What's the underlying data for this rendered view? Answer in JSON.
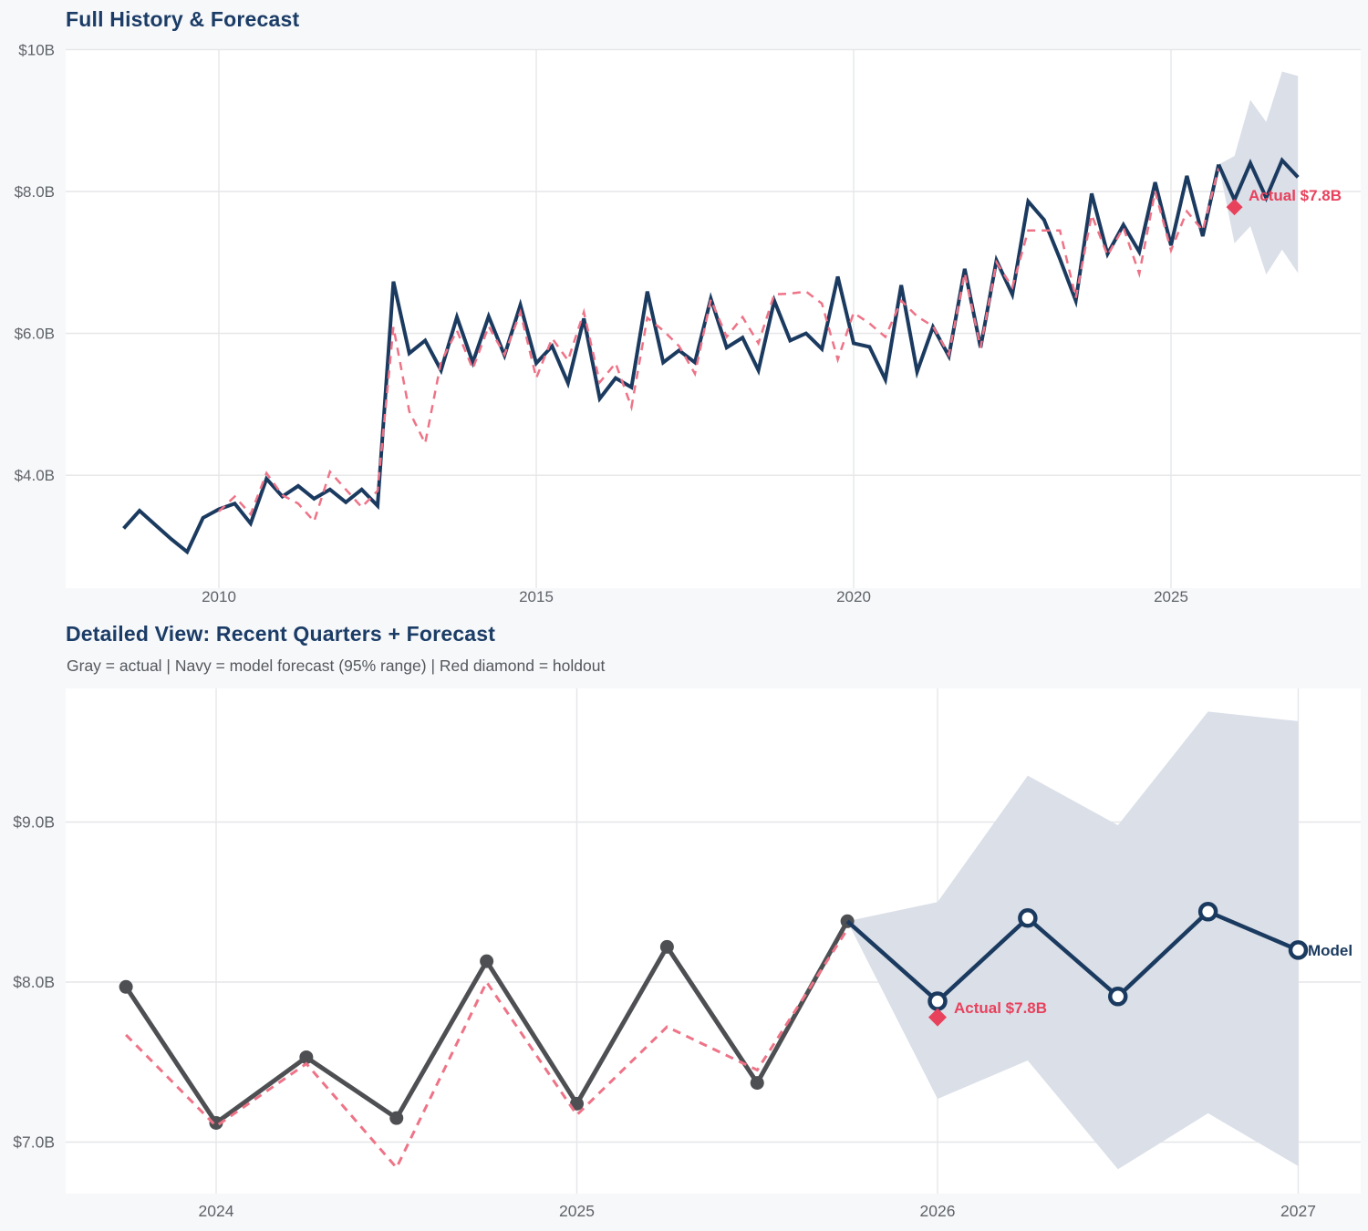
{
  "colors": {
    "navy": "#1b3a5f",
    "pink": "#ee7387",
    "red": "#e8415c",
    "band": "#dadfe8",
    "gray": "#4d4f52",
    "grid": "#e5e6e8",
    "axis_text": "#5f6368",
    "title": "#1b3c66",
    "subtitle": "#54585d",
    "background": "#f7f8fa",
    "plot_background": "#ffffff"
  },
  "chart_data": [
    {
      "type": "line",
      "title": "Full History & Forecast",
      "x_unit": "year (quarterly points)",
      "y_unit": "revenue, billions USD",
      "xlim": [
        2008.0,
        2028.0
      ],
      "ylim": [
        2.4,
        10.0
      ],
      "grid": "on",
      "y_ticks": [
        {
          "label": "$10B",
          "value": 10
        },
        {
          "label": "$8.0B",
          "value": 8
        },
        {
          "label": "$6.0B",
          "value": 6
        },
        {
          "label": "$4.0B",
          "value": 4
        }
      ],
      "x_ticks": [
        {
          "label": "2010",
          "value": 2010
        },
        {
          "label": "2015",
          "value": 2015
        },
        {
          "label": "2020",
          "value": 2020
        },
        {
          "label": "2025",
          "value": 2025
        }
      ],
      "series": [
        {
          "name": "actual",
          "color": "navy",
          "style": "solid",
          "width": 4,
          "x_start": 2008.5,
          "x_step": 0.25,
          "values": [
            3.25,
            3.5,
            3.3,
            3.1,
            2.92,
            3.4,
            3.52,
            3.6,
            3.32,
            3.95,
            3.7,
            3.85,
            3.67,
            3.8,
            3.62,
            3.8,
            3.57,
            6.73,
            5.72,
            5.9,
            5.48,
            6.23,
            5.59,
            6.24,
            5.69,
            6.4,
            5.58,
            5.82,
            5.3,
            6.21,
            5.08,
            5.37,
            5.24,
            6.59,
            5.59,
            5.76,
            5.59,
            6.49,
            5.8,
            5.94,
            5.48,
            6.46,
            5.9,
            6.0,
            5.78,
            6.8,
            5.86,
            5.81,
            5.35,
            6.68,
            5.46,
            6.09,
            5.68,
            6.91,
            5.8,
            7.03,
            6.55,
            7.86,
            7.6,
            7.05,
            6.46,
            7.97,
            7.12,
            7.53,
            7.15,
            8.13,
            7.24,
            8.22,
            7.37,
            8.38
          ]
        },
        {
          "name": "model_in_sample_fit",
          "color": "pink",
          "style": "dashed",
          "width": 2.5,
          "x_start": 2010.0,
          "x_step": 0.25,
          "values": [
            3.49,
            3.7,
            3.45,
            4.03,
            3.72,
            3.6,
            3.35,
            4.05,
            3.8,
            3.55,
            3.78,
            6.09,
            4.9,
            4.45,
            5.6,
            6.04,
            5.5,
            6.1,
            5.7,
            6.3,
            5.37,
            5.93,
            5.62,
            6.3,
            5.31,
            5.58,
            4.96,
            6.22,
            6.04,
            5.82,
            5.43,
            6.48,
            5.95,
            6.23,
            5.86,
            6.55,
            6.56,
            6.59,
            6.42,
            5.63,
            6.29,
            6.14,
            5.95,
            6.46,
            6.24,
            6.1,
            5.7,
            6.85,
            5.8,
            7.0,
            6.65,
            7.45,
            7.45,
            7.45,
            6.5,
            7.67,
            7.1,
            7.49,
            6.84,
            8.0,
            7.17,
            7.72,
            7.45,
            8.33
          ]
        },
        {
          "name": "model_forecast",
          "color": "navy",
          "style": "solid",
          "width": 4,
          "x_start": 2025.75,
          "x_step": 0.25,
          "values": [
            8.38,
            7.88,
            8.4,
            7.91,
            8.44,
            8.2
          ]
        }
      ],
      "band": {
        "name": "forecast_95_range",
        "color": "band",
        "x_start": 2025.75,
        "x_step": 0.25,
        "upper": [
          8.38,
          8.5,
          9.29,
          8.98,
          9.69,
          9.63
        ],
        "lower": [
          8.38,
          7.27,
          7.51,
          6.83,
          7.18,
          6.85
        ]
      },
      "holdout": {
        "x": 2026.0,
        "value": 7.78,
        "label": "Actual $7.8B",
        "marker": "diamond",
        "size": 9
      }
    },
    {
      "type": "line",
      "title": "Detailed View: Recent Quarters + Forecast",
      "subtitle": "Gray = actual  |  Navy = model forecast (95% range)  |  Red diamond = holdout",
      "x_unit": "year (quarterly points)",
      "y_unit": "revenue, billions USD",
      "xlim": [
        2023.6,
        2027.2
      ],
      "ylim": [
        6.7,
        9.8
      ],
      "grid": "on",
      "y_ticks": [
        {
          "label": "$9.0B",
          "value": 9
        },
        {
          "label": "$8.0B",
          "value": 8
        },
        {
          "label": "$7.0B",
          "value": 7
        }
      ],
      "x_ticks": [
        {
          "label": "2024",
          "value": 2024
        },
        {
          "label": "2025",
          "value": 2025
        },
        {
          "label": "2026",
          "value": 2026
        },
        {
          "label": "2027",
          "value": 2027
        }
      ],
      "series": [
        {
          "name": "actual",
          "color": "gray",
          "style": "solid",
          "width": 5,
          "marker": "dot",
          "marker_size": 7.5,
          "x_start": 2023.75,
          "x_step": 0.25,
          "values": [
            7.97,
            7.12,
            7.53,
            7.15,
            8.13,
            7.24,
            8.22,
            7.37,
            8.38
          ]
        },
        {
          "name": "model_in_sample_fit",
          "color": "pink",
          "style": "dashed",
          "width": 3,
          "x_start": 2023.75,
          "x_step": 0.25,
          "values": [
            7.67,
            7.1,
            7.49,
            6.84,
            8.0,
            7.17,
            7.72,
            7.45,
            8.33
          ]
        },
        {
          "name": "model_forecast",
          "color": "navy",
          "style": "solid",
          "width": 4.5,
          "marker": "open-circle",
          "marker_size": 8.5,
          "marker_skip_first": true,
          "x_start": 2025.75,
          "x_step": 0.25,
          "values": [
            8.38,
            7.88,
            8.4,
            7.91,
            8.44,
            8.2
          ],
          "end_label": "Model"
        }
      ],
      "band": {
        "name": "forecast_95_range",
        "color": "band",
        "x_start": 2025.75,
        "x_step": 0.25,
        "upper": [
          8.38,
          8.5,
          9.29,
          8.98,
          9.69,
          9.63
        ],
        "lower": [
          8.38,
          7.27,
          7.51,
          6.83,
          7.18,
          6.85
        ]
      },
      "holdout": {
        "x": 2026.0,
        "value": 7.78,
        "label": "Actual $7.8B",
        "marker": "diamond",
        "size": 10
      }
    }
  ]
}
